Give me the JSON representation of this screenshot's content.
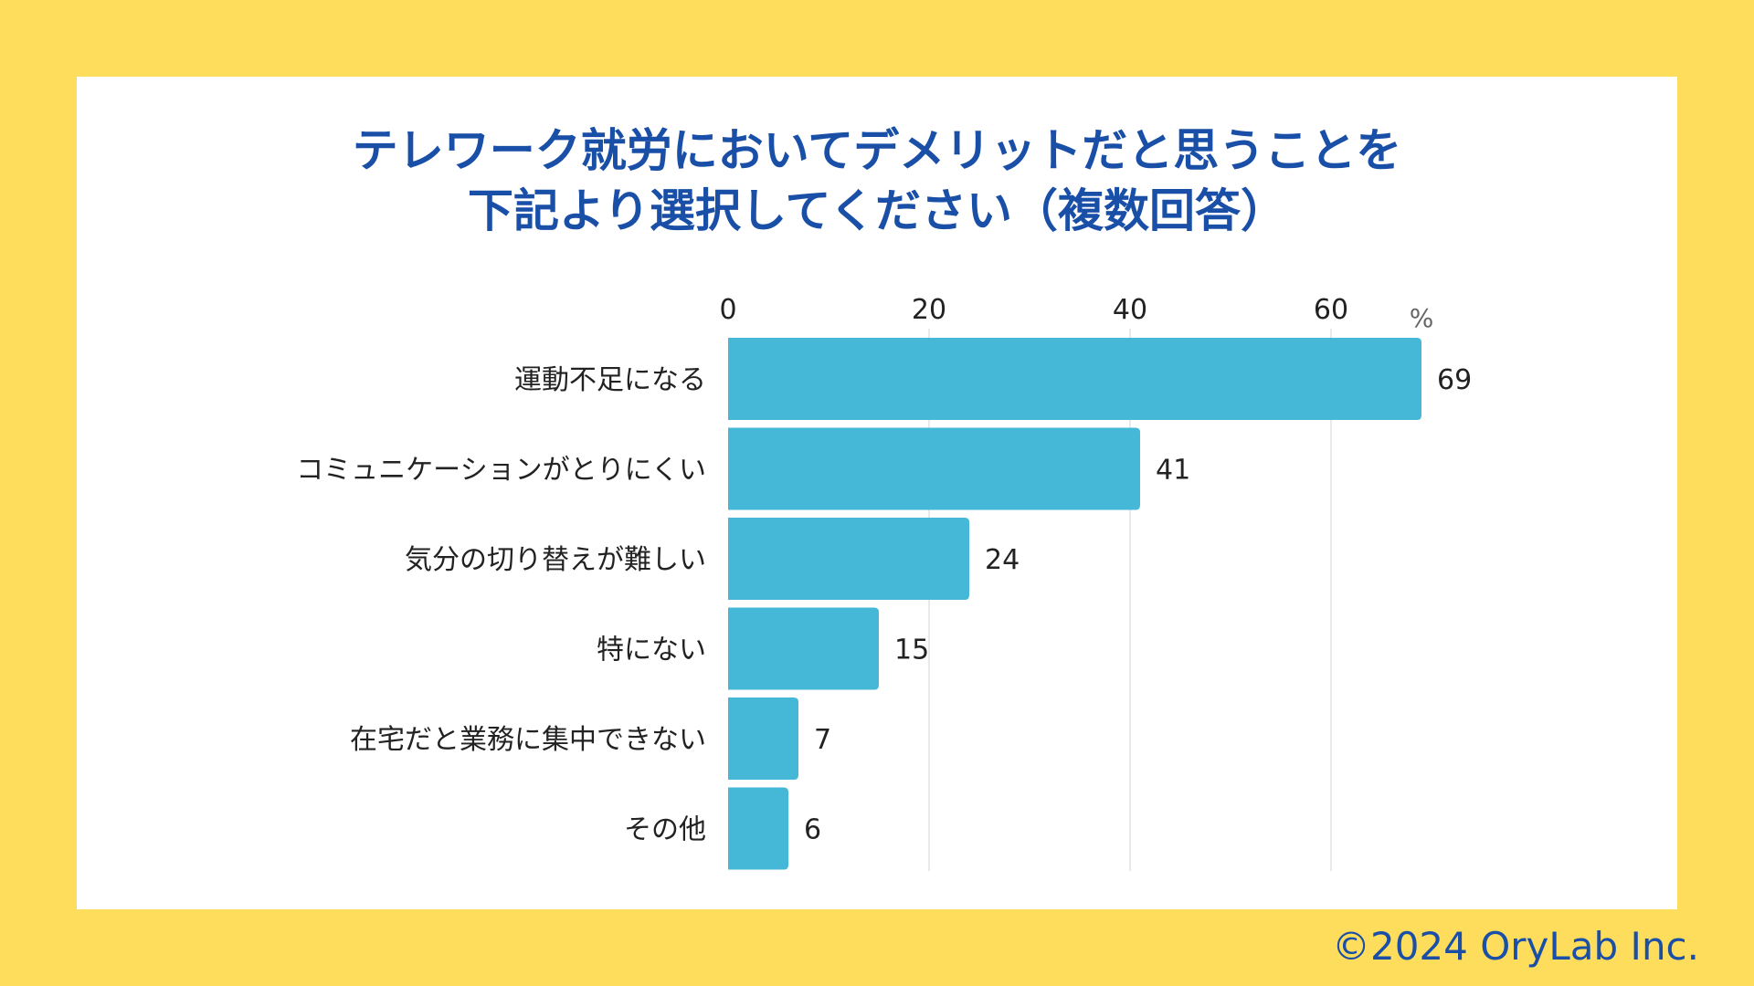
{
  "title_lines": [
    "テレワーク就労においてデメリットだと思うことを",
    "下記より選択してください（複数回答）"
  ],
  "credit": "©2024 OryLab Inc.",
  "colors": {
    "background": "#FFDD5C",
    "card": "#FFFFFF",
    "title": "#1A4FA8",
    "bar": "#45B8D8",
    "grid": "#E2E2E2",
    "text": "#222222"
  },
  "chart_data": {
    "type": "bar",
    "orientation": "horizontal",
    "unit_label": "%",
    "xlim": [
      0,
      69
    ],
    "ticks": [
      0,
      20,
      40,
      60
    ],
    "grid": true,
    "categories": [
      "運動不足になる",
      "コミュニケーションがとりにくい",
      "気分の切り替えが難しい",
      "特にない",
      "在宅だと業務に集中できない",
      "その他"
    ],
    "values": [
      69,
      41,
      24,
      15,
      7,
      6
    ]
  }
}
